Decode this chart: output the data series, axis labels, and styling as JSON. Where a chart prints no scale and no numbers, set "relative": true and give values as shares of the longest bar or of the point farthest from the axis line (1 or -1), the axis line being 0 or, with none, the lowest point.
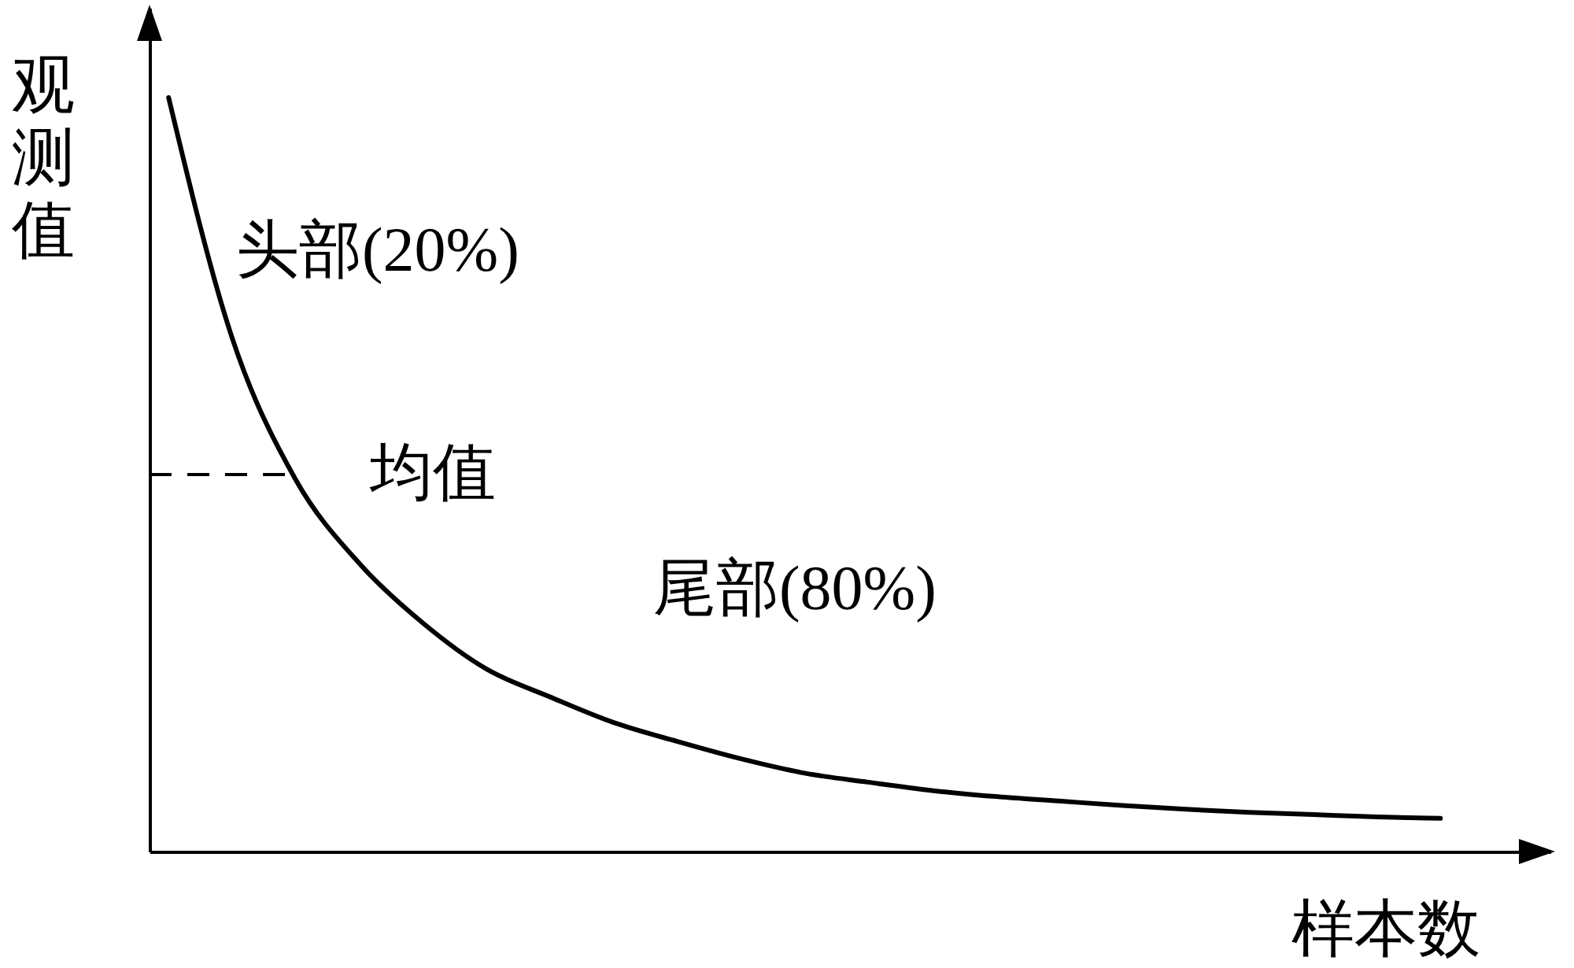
{
  "chart_data": {
    "type": "line",
    "relative": true,
    "xlabel": "样本数",
    "ylabel": "观测值",
    "categories": [
      null,
      null,
      null,
      null,
      null,
      null,
      null,
      null,
      null,
      null,
      null,
      null,
      null,
      null,
      null,
      null,
      null,
      null,
      null,
      null,
      null
    ],
    "series": [
      {
        "color": "#000000",
        "values": [
          1,
          0.681,
          0.493,
          0.382,
          0.303,
          0.242,
          0.205,
          0.171,
          0.146,
          0.123,
          0.104,
          0.092,
          0.081,
          0.073,
          0.067,
          0.061,
          0.056,
          0.052,
          0.049,
          0.046,
          0.044
        ]
      }
    ],
    "ref_lines": [
      {
        "axis": "y",
        "value": 0.5,
        "label": "均值",
        "color": "#000000",
        "line_style": "dashed"
      }
    ],
    "annotations": [
      "头部(20%)",
      "尾部(80%)"
    ],
    "grid": false,
    "marker": "none",
    "line_style": "solid"
  }
}
